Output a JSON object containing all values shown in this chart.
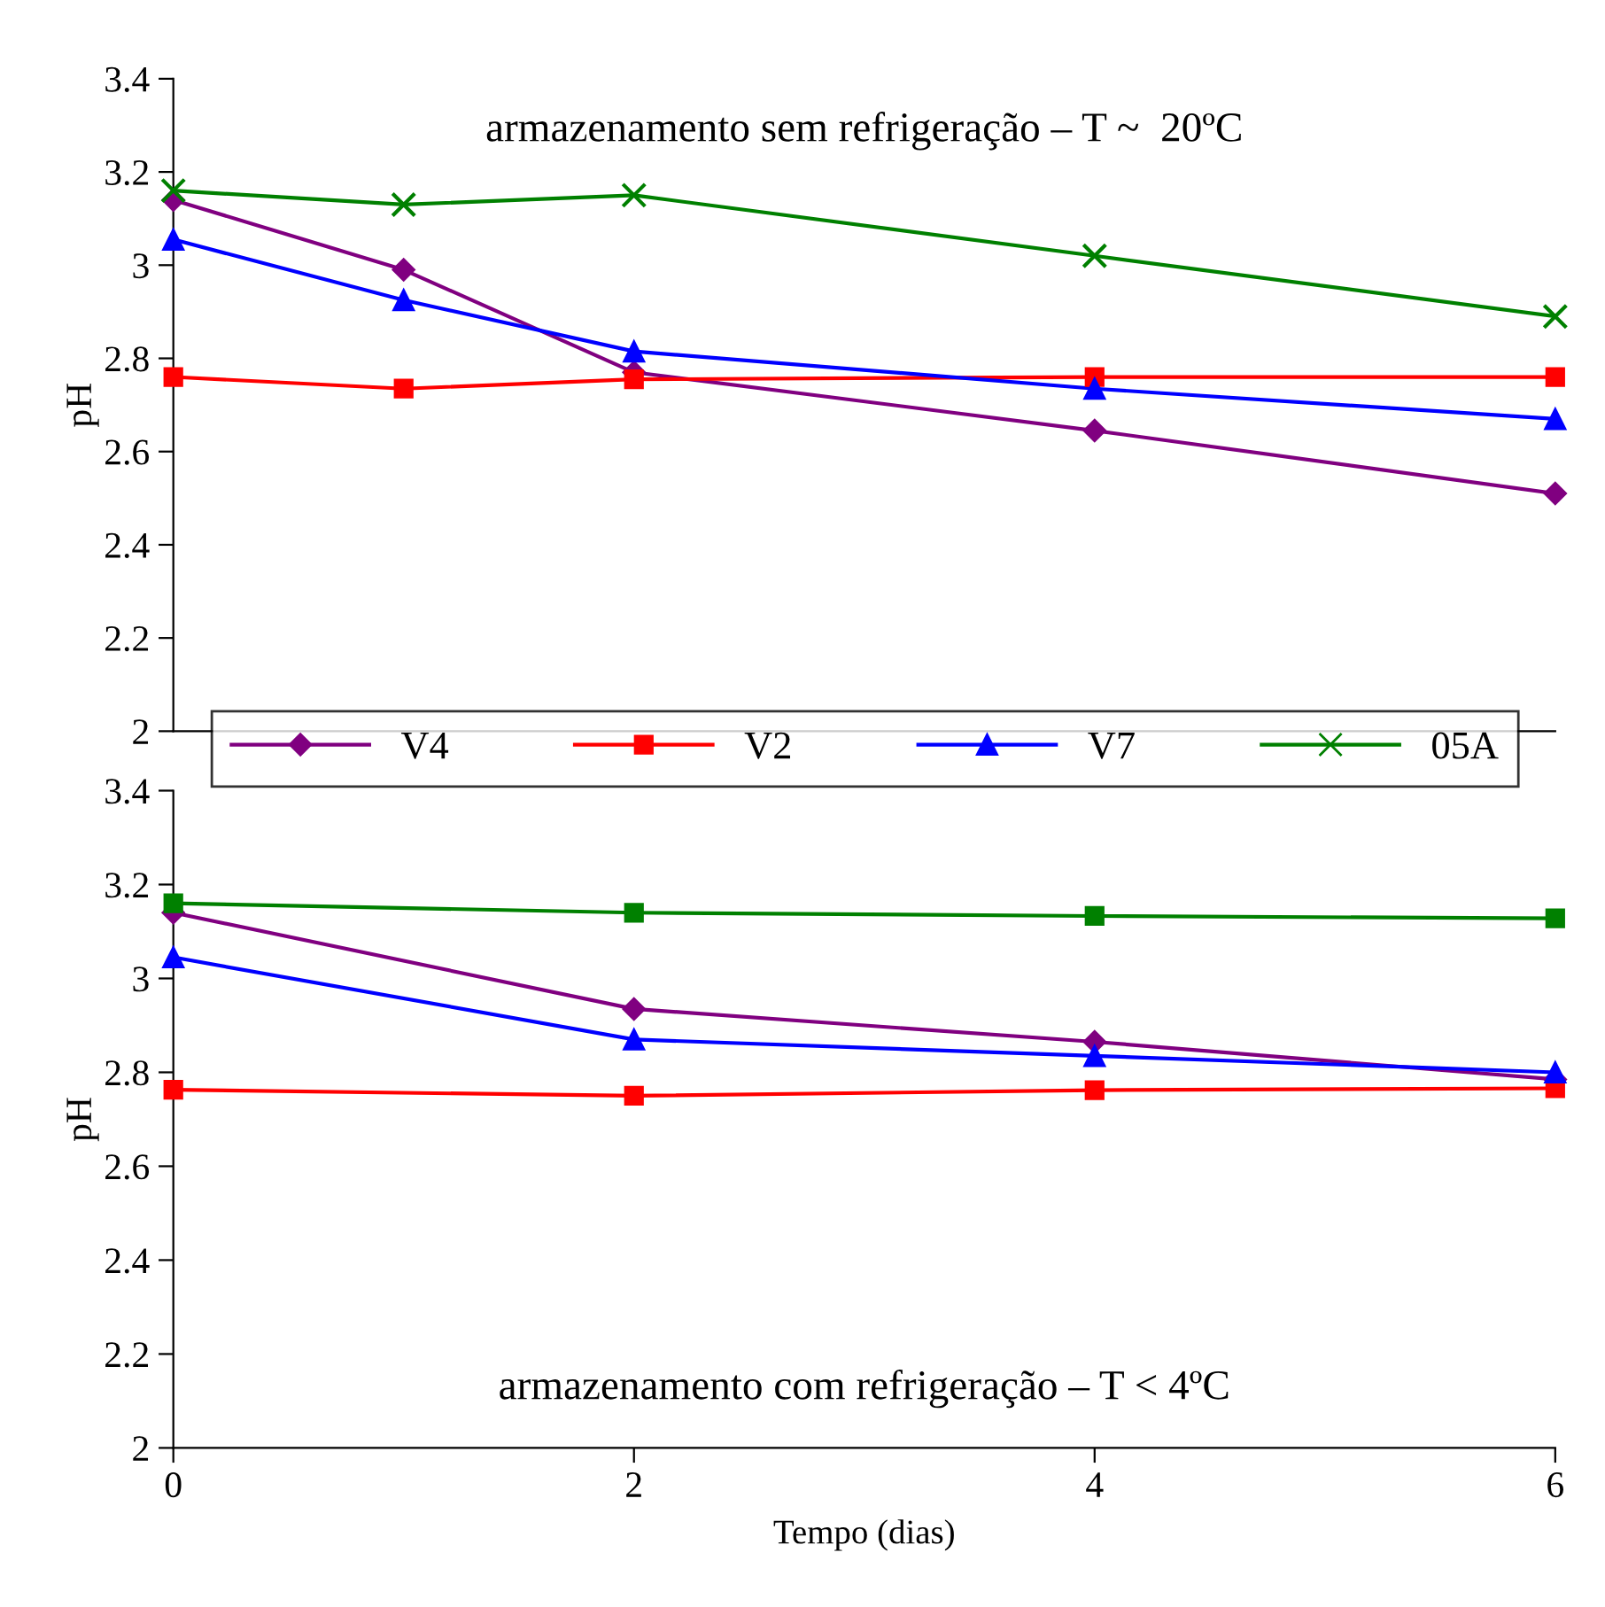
{
  "chart_data": [
    {
      "type": "line",
      "ylabel": "pH",
      "x": [
        0,
        1,
        2,
        4,
        6
      ],
      "xlim": [
        0,
        6
      ],
      "xticks": [
        0,
        2,
        4,
        6
      ],
      "ylim": [
        2,
        3.4
      ],
      "yticks": [
        2,
        2.2,
        2.4,
        2.6,
        2.8,
        3,
        3.2,
        3.4
      ],
      "tick_labels": "y",
      "grid": false,
      "legend": "bottom",
      "annotations": [
        "armazenamento sem refrigeração – T ~  20ºC"
      ],
      "series": [
        {
          "name": "V4",
          "color": "#800080",
          "marker": "diamond",
          "values": [
            3.14,
            2.99,
            2.77,
            2.645,
            2.51
          ]
        },
        {
          "name": "V2",
          "color": "#ff0000",
          "marker": "square",
          "values": [
            2.76,
            2.735,
            2.755,
            2.76,
            2.76
          ]
        },
        {
          "name": "V7",
          "color": "#0000ff",
          "marker": "triangle",
          "values": [
            3.055,
            2.925,
            2.815,
            2.735,
            2.67
          ]
        },
        {
          "name": "05A",
          "color": "#008000",
          "marker": "cross",
          "values": [
            3.16,
            3.13,
            3.15,
            3.02,
            2.89
          ]
        }
      ]
    },
    {
      "type": "line",
      "ylabel": "pH",
      "xlabel": "Tempo (dias)",
      "x": [
        0,
        2,
        4,
        6
      ],
      "xlim": [
        0,
        6
      ],
      "xticks": [
        0,
        2,
        4,
        6
      ],
      "ylim": [
        2,
        3.4
      ],
      "yticks": [
        2,
        2.2,
        2.4,
        2.6,
        2.8,
        3,
        3.2,
        3.4
      ],
      "grid": false,
      "annotations": [
        "armazenamento com refrigeração – T < 4ºC"
      ],
      "series": [
        {
          "color": "#800080",
          "marker": "diamond",
          "values": [
            3.14,
            2.935,
            2.865,
            2.785
          ]
        },
        {
          "color": "#ff0000",
          "marker": "square",
          "values": [
            2.763,
            2.75,
            2.762,
            2.766
          ]
        },
        {
          "color": "#0000ff",
          "marker": "triangle",
          "values": [
            3.045,
            2.87,
            2.835,
            2.8
          ]
        },
        {
          "color": "#008000",
          "marker": "square",
          "values": [
            3.16,
            3.14,
            3.133,
            3.128
          ]
        }
      ]
    }
  ]
}
